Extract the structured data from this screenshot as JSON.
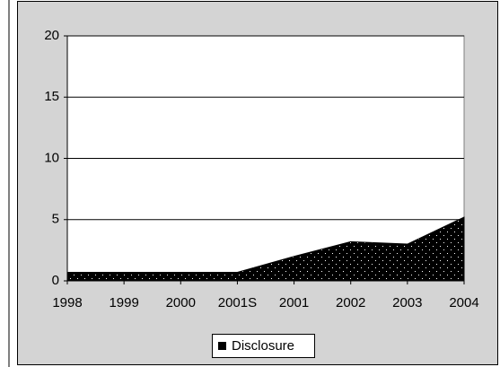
{
  "chart_data": {
    "type": "area",
    "categories": [
      "1998",
      "1999",
      "2000",
      "2001S",
      "2001",
      "2002",
      "2003",
      "2004"
    ],
    "series": [
      {
        "name": "Disclosure",
        "color": "#000000",
        "values": [
          0.7,
          0.7,
          0.7,
          0.7,
          2.0,
          3.2,
          3.0,
          5.2
        ]
      }
    ],
    "ylim": [
      0,
      20
    ],
    "yticks": [
      0,
      5,
      10,
      15,
      20
    ],
    "grid": true,
    "legend": "bottom"
  }
}
